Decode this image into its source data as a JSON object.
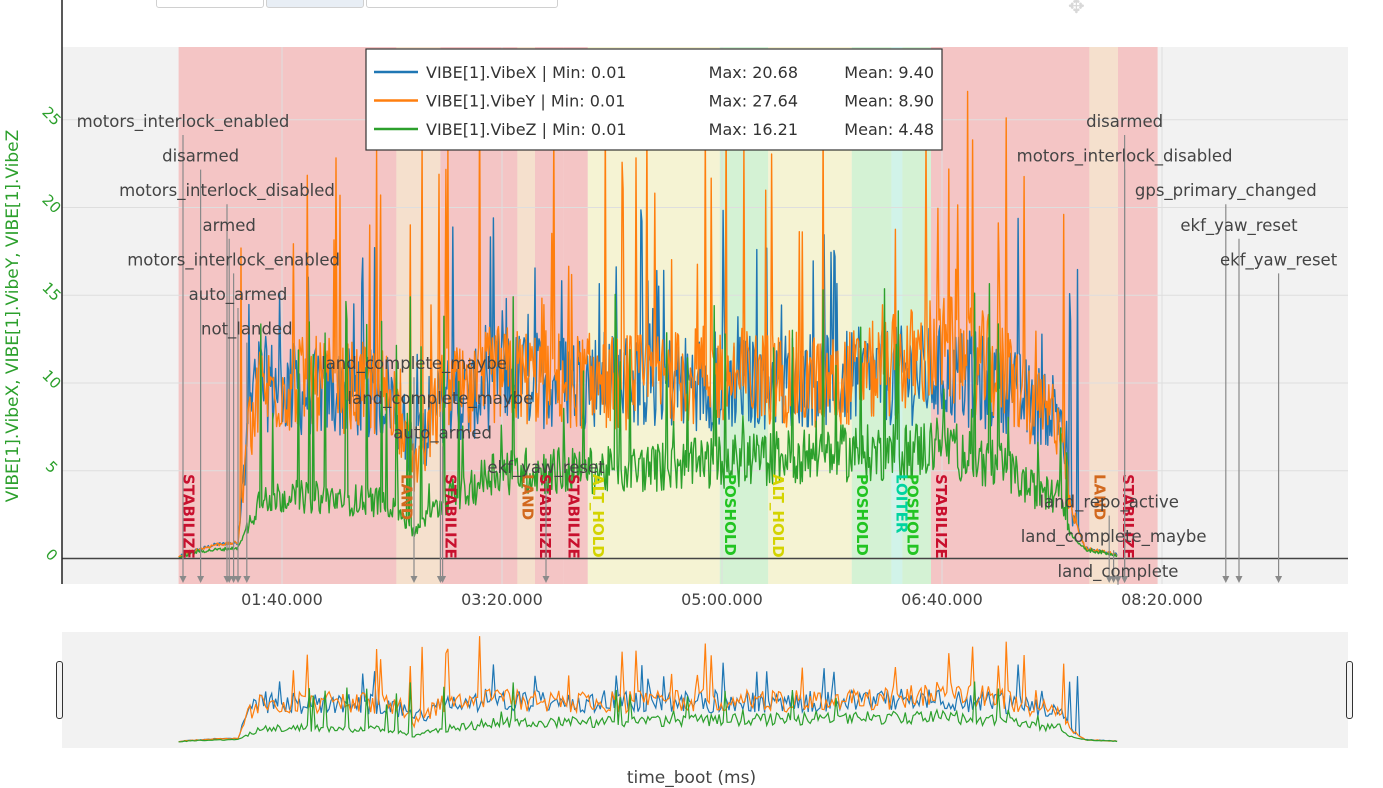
{
  "toolbar": {
    "move_icon": "move-icon"
  },
  "chart_data": {
    "type": "line",
    "xlabel": "time_boot (ms)",
    "ylabel": "VIBE[1].VibeX, VIBE[1].VibeY, VIBE[1].VibeZ",
    "ylim": [
      -1.5,
      29
    ],
    "xlim": [
      0,
      590
    ],
    "x_ticks": [
      {
        "t": 100,
        "label": "01:40.000"
      },
      {
        "t": 200,
        "label": "03:20.000"
      },
      {
        "t": 300,
        "label": "05:00.000"
      },
      {
        "t": 400,
        "label": "06:40.000"
      },
      {
        "t": 500,
        "label": "08:20.000"
      }
    ],
    "y_ticks": [
      0,
      5,
      10,
      15,
      20,
      25
    ],
    "grid": true,
    "legend_position": "top-center",
    "series": [
      {
        "name": "VIBE[1].VibeX",
        "color": "#1f77b4",
        "min": "0.01",
        "max": "20.68",
        "mean": "9.40",
        "legend_text": "VIBE[1].VibeX | Min: 0.01",
        "legend_max": "Max: 20.68",
        "legend_mean": "Mean: 9.40",
        "profile": [
          [
            53,
            0.01
          ],
          [
            56,
            0.3
          ],
          [
            62,
            0.5
          ],
          [
            70,
            0.8
          ],
          [
            80,
            0.9
          ],
          [
            85,
            8.5
          ],
          [
            90,
            10
          ],
          [
            110,
            9.5
          ],
          [
            150,
            9.3
          ],
          [
            160,
            6
          ],
          [
            175,
            9.5
          ],
          [
            185,
            9
          ],
          [
            195,
            10.2
          ],
          [
            250,
            10.2
          ],
          [
            300,
            10
          ],
          [
            350,
            10.3
          ],
          [
            380,
            10.4
          ],
          [
            400,
            10.5
          ],
          [
            430,
            9.8
          ],
          [
            440,
            8.8
          ],
          [
            454,
            8.5
          ],
          [
            458,
            3
          ],
          [
            465,
            0.6
          ],
          [
            480,
            0.2
          ]
        ]
      },
      {
        "name": "VIBE[1].VibeY",
        "color": "#ff7f0e",
        "min": "0.01",
        "max": "27.64",
        "mean": "8.90",
        "legend_text": "VIBE[1].VibeY | Min: 0.01",
        "legend_max": "Max: 27.64",
        "legend_mean": "Mean: 8.90",
        "profile": [
          [
            53,
            0.01
          ],
          [
            56,
            0.3
          ],
          [
            62,
            0.5
          ],
          [
            70,
            0.8
          ],
          [
            80,
            0.9
          ],
          [
            85,
            7.5
          ],
          [
            90,
            9.5
          ],
          [
            110,
            10
          ],
          [
            150,
            9.5
          ],
          [
            160,
            5
          ],
          [
            175,
            10
          ],
          [
            185,
            9
          ],
          [
            195,
            10.5
          ],
          [
            250,
            10
          ],
          [
            300,
            10.5
          ],
          [
            350,
            10
          ],
          [
            380,
            11
          ],
          [
            400,
            12
          ],
          [
            430,
            10.5
          ],
          [
            440,
            8.5
          ],
          [
            454,
            8
          ],
          [
            458,
            3
          ],
          [
            465,
            0.6
          ],
          [
            480,
            0.2
          ]
        ]
      },
      {
        "name": "VIBE[1].VibeZ",
        "color": "#2ca02c",
        "min": "0.01",
        "max": "16.21",
        "mean": "4.48",
        "legend_text": "VIBE[1].VibeZ | Min: 0.01",
        "legend_max": "Max: 16.21",
        "legend_mean": "Mean: 4.48",
        "profile": [
          [
            53,
            0.01
          ],
          [
            56,
            0.2
          ],
          [
            62,
            0.4
          ],
          [
            70,
            0.5
          ],
          [
            80,
            0.6
          ],
          [
            85,
            2
          ],
          [
            90,
            3.5
          ],
          [
            110,
            3.5
          ],
          [
            150,
            3.2
          ],
          [
            160,
            1.5
          ],
          [
            175,
            3.5
          ],
          [
            185,
            3.8
          ],
          [
            195,
            5
          ],
          [
            250,
            5
          ],
          [
            300,
            5.5
          ],
          [
            350,
            6
          ],
          [
            380,
            6
          ],
          [
            400,
            6.5
          ],
          [
            430,
            5
          ],
          [
            440,
            4
          ],
          [
            454,
            3.5
          ],
          [
            458,
            1.5
          ],
          [
            465,
            0.5
          ],
          [
            480,
            0.2
          ]
        ]
      }
    ],
    "mode_bands": [
      {
        "start": 53,
        "end": 152,
        "color": "#f4b6b6",
        "label": "STABILIZE",
        "label_color": "#c8102e"
      },
      {
        "start": 152,
        "end": 172,
        "color": "#f5d9c0",
        "label": "LAND",
        "label_color": "#d2691e"
      },
      {
        "start": 172,
        "end": 207,
        "color": "#f4b6b6",
        "label": "STABILIZE",
        "label_color": "#c8102e"
      },
      {
        "start": 207,
        "end": 215,
        "color": "#f5d9c0",
        "label": "LAND",
        "label_color": "#d2691e"
      },
      {
        "start": 215,
        "end": 228,
        "color": "#f4b6b6",
        "label": "STABILIZE",
        "label_color": "#c8102e"
      },
      {
        "start": 228,
        "end": 239,
        "color": "#f4b6b6",
        "label": "STABILIZE",
        "label_color": "#c8102e"
      },
      {
        "start": 239,
        "end": 299,
        "color": "#f5f3c8",
        "label": "ALT_HOLD",
        "label_color": "#d4d400"
      },
      {
        "start": 299,
        "end": 321,
        "color": "#c9f2c9",
        "label": "POSHOLD",
        "label_color": "#22c422"
      },
      {
        "start": 321,
        "end": 359,
        "color": "#f5f3c8",
        "label": "ALT_HOLD",
        "label_color": "#d4d400"
      },
      {
        "start": 359,
        "end": 377,
        "color": "#c9f2c9",
        "label": "POSHOLD",
        "label_color": "#22c422"
      },
      {
        "start": 377,
        "end": 382,
        "color": "#c6f3e6",
        "label": "LOITER",
        "label_color": "#00d4a0"
      },
      {
        "start": 382,
        "end": 395,
        "color": "#c9f2c9",
        "label": "POSHOLD",
        "label_color": "#22c422"
      },
      {
        "start": 395,
        "end": 467,
        "color": "#f4b6b6",
        "label": "STABILIZE",
        "label_color": "#c8102e"
      },
      {
        "start": 467,
        "end": 480,
        "color": "#f5d9c0",
        "label": "LAND",
        "label_color": "#d2691e"
      },
      {
        "start": 480,
        "end": 498,
        "color": "#f4b6b6",
        "label": "STABILIZE",
        "label_color": "#c8102e"
      }
    ],
    "events": [
      {
        "t": 55,
        "text": "motors_interlock_enabled",
        "level": 0
      },
      {
        "t": 63,
        "text": "disarmed",
        "level": 1
      },
      {
        "t": 75,
        "text": "motors_interlock_disabled",
        "level": 2
      },
      {
        "t": 76,
        "text": "armed",
        "level": 3
      },
      {
        "t": 78,
        "text": "motors_interlock_enabled",
        "level": 4
      },
      {
        "t": 80,
        "text": "auto_armed",
        "level": 5
      },
      {
        "t": 84,
        "text": "not_landed",
        "level": 6
      },
      {
        "t": 160,
        "text": "land_complete_maybe",
        "level": 7
      },
      {
        "t": 172,
        "text": "land_complete_maybe",
        "level": 8
      },
      {
        "t": 173,
        "text": "auto_armed",
        "level": 9
      },
      {
        "t": 220,
        "text": "ekf_yaw_reset",
        "level": 10
      },
      {
        "t": 483,
        "text": "disarmed",
        "level": 0
      },
      {
        "t": 483,
        "text": "motors_interlock_disabled",
        "level": 1
      },
      {
        "t": 529,
        "text": "gps_primary_changed",
        "level": 2
      },
      {
        "t": 535,
        "text": "ekf_yaw_reset",
        "level": 3
      },
      {
        "t": 553,
        "text": "ekf_yaw_reset",
        "level": 4
      },
      {
        "t": 476,
        "text": "land_repo_active",
        "level": 11
      },
      {
        "t": 478,
        "text": "land_complete_maybe",
        "level": 12
      },
      {
        "t": 480,
        "text": "land_complete",
        "level": 13
      }
    ]
  }
}
